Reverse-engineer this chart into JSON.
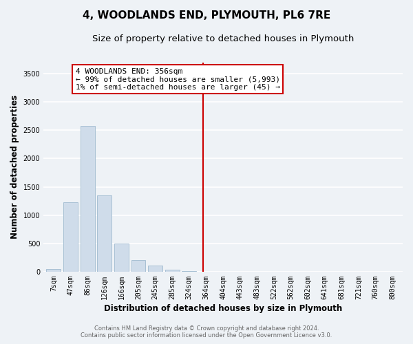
{
  "title": "4, WOODLANDS END, PLYMOUTH, PL6 7RE",
  "subtitle": "Size of property relative to detached houses in Plymouth",
  "xlabel": "Distribution of detached houses by size in Plymouth",
  "ylabel": "Number of detached properties",
  "bar_color": "#cfdcea",
  "bar_edge_color": "#a8c0d4",
  "categories": [
    "7sqm",
    "47sqm",
    "86sqm",
    "126sqm",
    "166sqm",
    "205sqm",
    "245sqm",
    "285sqm",
    "324sqm",
    "364sqm",
    "404sqm",
    "443sqm",
    "483sqm",
    "522sqm",
    "562sqm",
    "602sqm",
    "641sqm",
    "681sqm",
    "721sqm",
    "760sqm",
    "800sqm"
  ],
  "values": [
    50,
    1230,
    2580,
    1350,
    500,
    200,
    110,
    40,
    10,
    2,
    1,
    0,
    0,
    0,
    0,
    0,
    0,
    0,
    0,
    0,
    0
  ],
  "annotation_title": "4 WOODLANDS END: 356sqm",
  "annotation_line1": "← 99% of detached houses are smaller (5,993)",
  "annotation_line2": "1% of semi-detached houses are larger (45) →",
  "ylim": [
    0,
    3700
  ],
  "yticks": [
    0,
    500,
    1000,
    1500,
    2000,
    2500,
    3000,
    3500
  ],
  "footer_line1": "Contains HM Land Registry data © Crown copyright and database right 2024.",
  "footer_line2": "Contains public sector information licensed under the Open Government Licence v3.0.",
  "background_color": "#eef2f6",
  "plot_bg_color": "#eef2f6",
  "grid_color": "#ffffff",
  "vline_color": "#cc0000",
  "ann_edge_color": "#cc0000",
  "title_fontsize": 11,
  "subtitle_fontsize": 9.5,
  "axis_label_fontsize": 8.5,
  "tick_fontsize": 7,
  "annotation_fontsize": 8,
  "footer_fontsize": 6
}
